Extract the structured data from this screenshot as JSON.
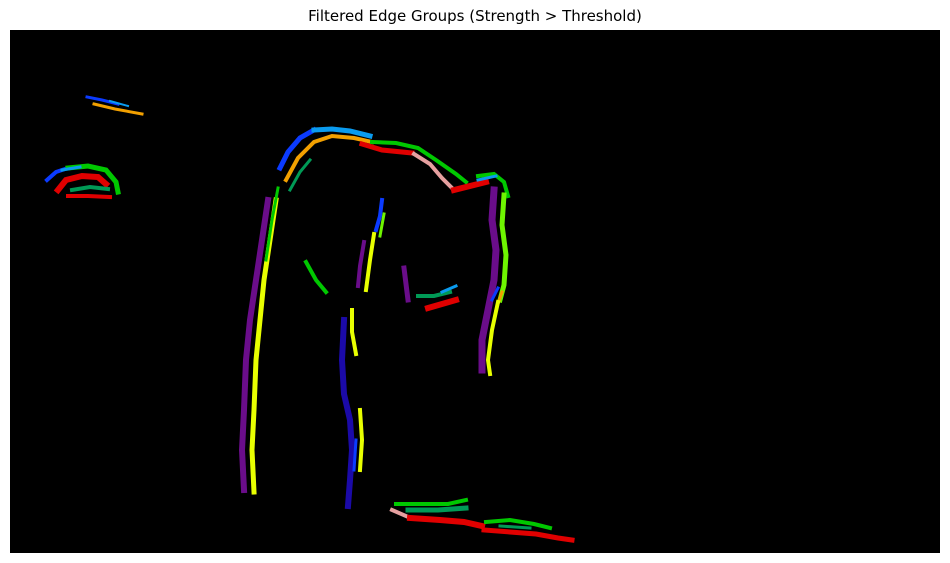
{
  "figure": {
    "title": "Filtered Edge Groups (Strength > Threshold)"
  },
  "colors": {
    "background": "#000000",
    "palette": {
      "purple": "#6a0d8a",
      "indigo": "#1b0aa8",
      "blue": "#0b3bff",
      "skyblue": "#0a9bef",
      "green": "#00c800",
      "teal": "#009a56",
      "lime": "#6ef500",
      "yellow": "#e8ff00",
      "orange": "#f2a000",
      "red": "#e00000",
      "pink": "#e6a0a0"
    }
  },
  "edge_groups": [
    {
      "name": "top-left-streak-blue",
      "color": "#0b3bff"
    },
    {
      "name": "top-left-streak-orange",
      "color": "#f2a000"
    },
    {
      "name": "left-eye-blue",
      "color": "#0b3bff"
    },
    {
      "name": "left-eye-green",
      "color": "#00c800"
    },
    {
      "name": "left-eye-red",
      "color": "#e00000"
    },
    {
      "name": "left-eye-teal",
      "color": "#009a56"
    },
    {
      "name": "head-arc-skyblue",
      "color": "#0a9bef"
    },
    {
      "name": "head-arc-orange",
      "color": "#f2a000"
    },
    {
      "name": "head-arc-green",
      "color": "#00c800"
    },
    {
      "name": "head-arc-red",
      "color": "#e00000"
    },
    {
      "name": "body-left-purple",
      "color": "#6a0d8a"
    },
    {
      "name": "body-left-yellow",
      "color": "#e8ff00"
    },
    {
      "name": "body-right-purple",
      "color": "#6a0d8a"
    },
    {
      "name": "body-right-lime",
      "color": "#6ef500"
    },
    {
      "name": "center-indigo",
      "color": "#1b0aa8"
    },
    {
      "name": "center-yellow",
      "color": "#e8ff00"
    },
    {
      "name": "bottom-green",
      "color": "#00c800"
    },
    {
      "name": "bottom-red",
      "color": "#e00000"
    }
  ]
}
